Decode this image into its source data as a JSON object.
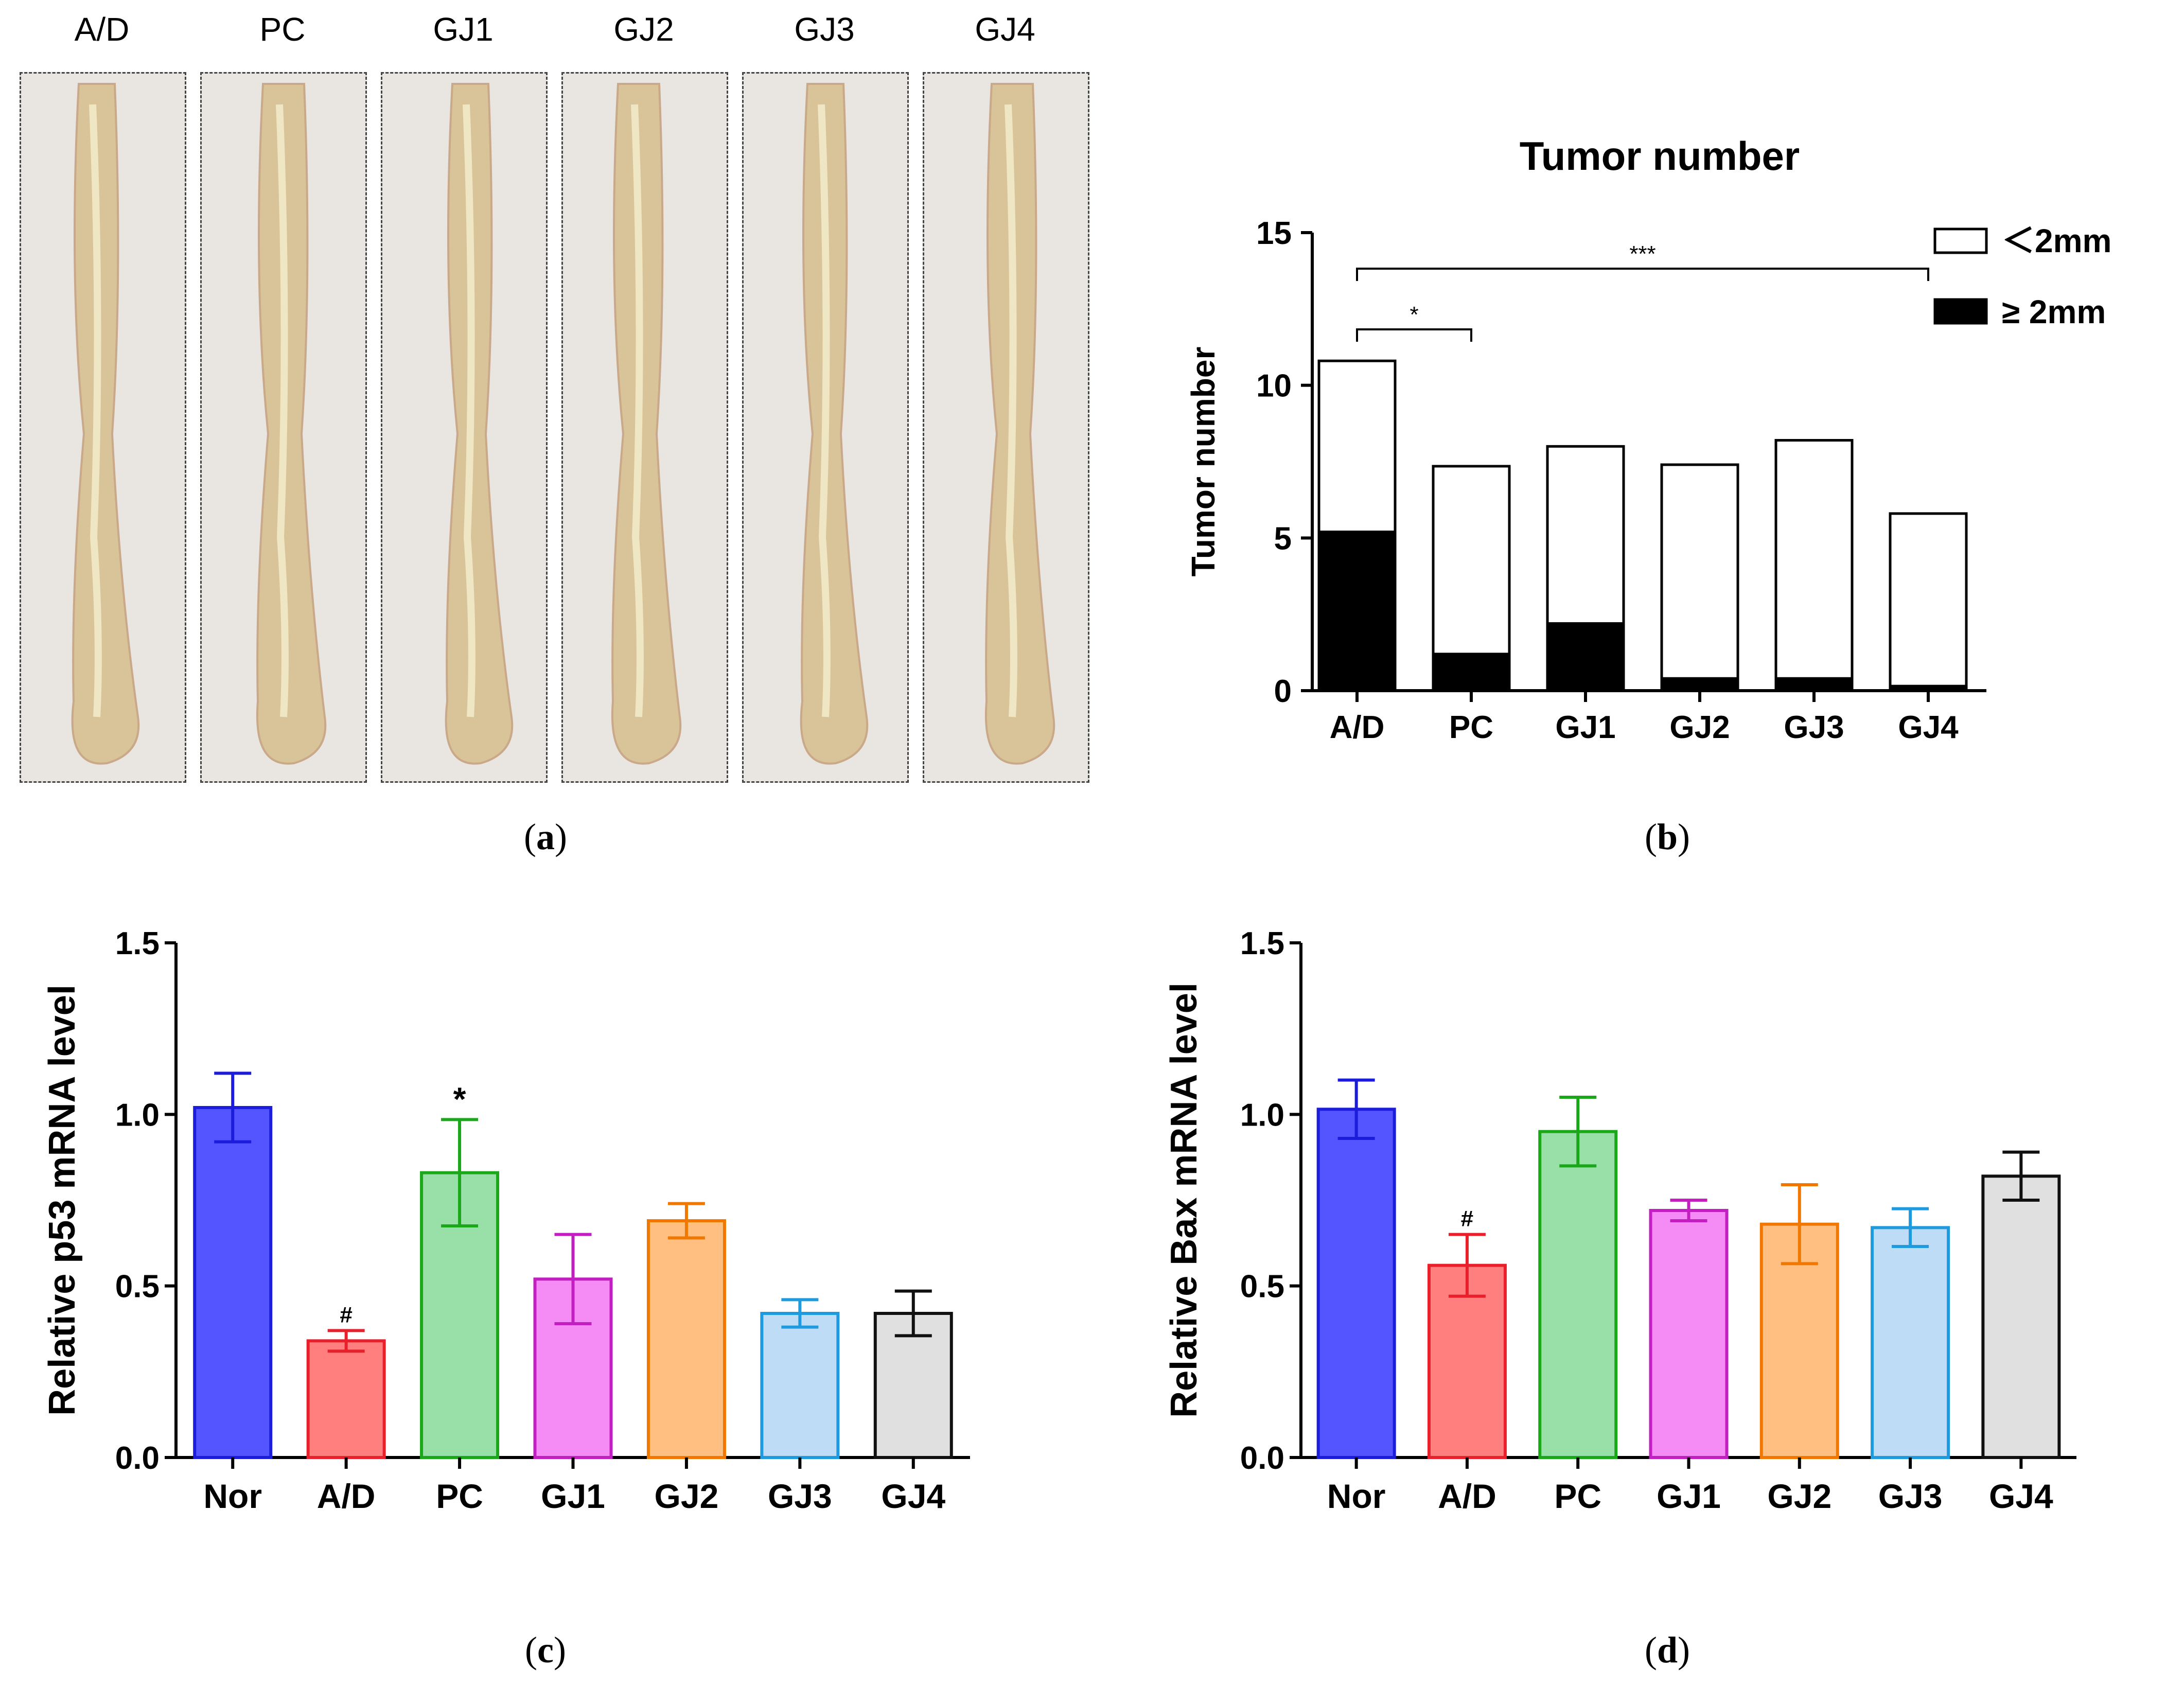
{
  "panel_a": {
    "caption": "a",
    "labels": [
      "A/D",
      "PC",
      "GJ1",
      "GJ2",
      "GJ3",
      "GJ4"
    ],
    "photo_icon": "colon-tissue-photo"
  },
  "captions": {
    "a": "a",
    "b": "b",
    "c": "c",
    "d": "d"
  },
  "chart_data": [
    {
      "id": "b",
      "type": "bar",
      "stacked": true,
      "title": "Tumor number",
      "ylabel": "Tumor number",
      "xlabel": "",
      "ylim": [
        0,
        15
      ],
      "yticks": [
        0,
        5,
        10,
        15
      ],
      "categories": [
        "A/D",
        "PC",
        "GJ1",
        "GJ2",
        "GJ3",
        "GJ4"
      ],
      "series": [
        {
          "name": "≥ 2mm",
          "color": "#000000",
          "values": [
            5.2,
            1.2,
            2.2,
            0.4,
            0.4,
            0.15
          ]
        },
        {
          "name": "＜2mm",
          "color": "#ffffff",
          "values": [
            5.6,
            6.15,
            5.8,
            7.0,
            7.8,
            5.65
          ]
        }
      ],
      "legend": [
        "＜2mm",
        "≥ 2mm"
      ],
      "significance": [
        {
          "from": "A/D",
          "to": "PC",
          "label": "*"
        },
        {
          "from": "A/D",
          "to": "GJ4",
          "label": "***"
        }
      ]
    },
    {
      "id": "c",
      "type": "bar",
      "title": "",
      "ylabel": "Relative p53 mRNA level",
      "xlabel": "",
      "ylim": [
        0,
        1.5
      ],
      "yticks": [
        "0.0",
        "0.5",
        "1.0",
        "1.5"
      ],
      "categories": [
        "Nor",
        "A/D",
        "PC",
        "GJ1",
        "GJ2",
        "GJ3",
        "GJ4"
      ],
      "values": [
        1.02,
        0.34,
        0.83,
        0.52,
        0.69,
        0.42,
        0.42
      ],
      "errors": [
        0.1,
        0.03,
        0.155,
        0.13,
        0.05,
        0.04,
        0.065
      ],
      "fill_colors": [
        "#5555ff",
        "#ff7f7f",
        "#99e0a8",
        "#f58cf5",
        "#ffbf80",
        "#bfdcf7",
        "#e0e0e0"
      ],
      "edge_colors": [
        "#1c1cdb",
        "#e8202c",
        "#1aa81a",
        "#c21ec2",
        "#f07800",
        "#1e9bdf",
        "#111111"
      ],
      "annotations": [
        "",
        "#",
        "*",
        "",
        "",
        "",
        ""
      ]
    },
    {
      "id": "d",
      "type": "bar",
      "title": "",
      "ylabel": "Relative Bax mRNA level",
      "xlabel": "",
      "ylim": [
        0,
        1.5
      ],
      "yticks": [
        "0.0",
        "0.5",
        "1.0",
        "1.5"
      ],
      "categories": [
        "Nor",
        "A/D",
        "PC",
        "GJ1",
        "GJ2",
        "GJ3",
        "GJ4"
      ],
      "values": [
        1.015,
        0.56,
        0.95,
        0.72,
        0.68,
        0.67,
        0.82
      ],
      "errors": [
        0.085,
        0.09,
        0.1,
        0.03,
        0.115,
        0.055,
        0.07
      ],
      "fill_colors": [
        "#5555ff",
        "#ff7f7f",
        "#99e0a8",
        "#f58cf5",
        "#ffbf80",
        "#bfdcf7",
        "#e0e0e0"
      ],
      "edge_colors": [
        "#1c1cdb",
        "#e8202c",
        "#1aa81a",
        "#c21ec2",
        "#f07800",
        "#1e9bdf",
        "#111111"
      ],
      "annotations": [
        "",
        "#",
        "",
        "",
        "",
        "",
        ""
      ]
    }
  ]
}
